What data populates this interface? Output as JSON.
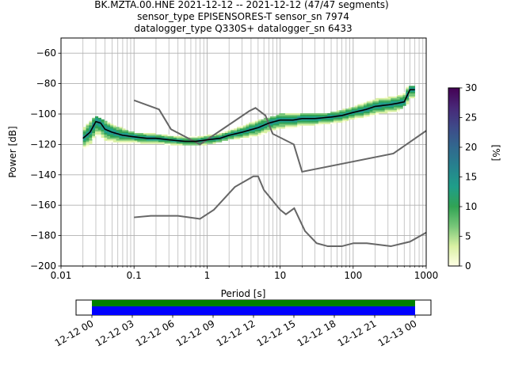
{
  "title_lines": [
    "BK.MZTA.00.HNE   2021-12-12 -- 2021-12-12  (47/47 segments)",
    "sensor_type EPISENSORES-T sensor_sn 7974",
    "datalogger_type Q330S+ datalogger_sn 6433"
  ],
  "chart_data": {
    "type": "heatmap",
    "xlabel": "Period [s]",
    "ylabel": "Power [dB]",
    "xscale": "log",
    "xlim": [
      0.01,
      1000
    ],
    "ylim": [
      -200,
      -50
    ],
    "grid": true,
    "x_ticks": [
      {
        "value": 0.01,
        "label": "0.01"
      },
      {
        "value": 0.1,
        "label": "0.1"
      },
      {
        "value": 1,
        "label": "1"
      },
      {
        "value": 10,
        "label": "10"
      },
      {
        "value": 100,
        "label": "100"
      },
      {
        "value": 1000,
        "label": "1000"
      }
    ],
    "y_ticks": [
      {
        "value": -60,
        "label": "−60"
      },
      {
        "value": -80,
        "label": "−80"
      },
      {
        "value": -100,
        "label": "−100"
      },
      {
        "value": -120,
        "label": "−120"
      },
      {
        "value": -140,
        "label": "−140"
      },
      {
        "value": -160,
        "label": "−160"
      },
      {
        "value": -180,
        "label": "−180"
      },
      {
        "value": -200,
        "label": "−200"
      }
    ],
    "colorbar": {
      "label": "[%]",
      "range": [
        0,
        30
      ],
      "ticks": [
        {
          "value": 0,
          "label": "0"
        },
        {
          "value": 5,
          "label": "5"
        },
        {
          "value": 10,
          "label": "10"
        },
        {
          "value": 15,
          "label": "15"
        },
        {
          "value": 20,
          "label": "20"
        },
        {
          "value": 25,
          "label": "25"
        },
        {
          "value": 30,
          "label": "30"
        }
      ],
      "colors": [
        "#ffffe5",
        "#d9f0a3",
        "#78c679",
        "#31a354",
        "#1f9e89",
        "#26828e",
        "#31688e",
        "#3e4a89",
        "#482878",
        "#440154"
      ]
    },
    "mode_curve": {
      "x": [
        0.02,
        0.025,
        0.03,
        0.035,
        0.04,
        0.05,
        0.07,
        0.1,
        0.15,
        0.2,
        0.3,
        0.5,
        0.7,
        1,
        1.5,
        2,
        3,
        5,
        7,
        10,
        15,
        20,
        30,
        50,
        70,
        100,
        150,
        200,
        300,
        400,
        500,
        600,
        700
      ],
      "y": [
        -116,
        -112,
        -105,
        -106,
        -110,
        -112,
        -114,
        -115,
        -116,
        -116,
        -117,
        -118,
        -118,
        -117,
        -116,
        -114,
        -112,
        -109,
        -106,
        -104,
        -104,
        -103,
        -103,
        -102,
        -101,
        -99,
        -97,
        -95,
        -94,
        -93,
        -92,
        -84,
        -84
      ]
    },
    "density_band": {
      "x": [
        0.02,
        0.03,
        0.05,
        0.1,
        0.2,
        0.5,
        1,
        2,
        5,
        10,
        20,
        50,
        100,
        200,
        400,
        500,
        700
      ],
      "upper": [
        -110,
        -101,
        -107,
        -112,
        -113,
        -114,
        -113,
        -110,
        -104,
        -100,
        -100,
        -99,
        -95,
        -90,
        -88,
        -82,
        -82
      ],
      "lower": [
        -124,
        -120,
        -120,
        -120,
        -120,
        -120,
        -120,
        -117,
        -115,
        -112,
        -109,
        -108,
        -104,
        -101,
        -99,
        -94,
        -94
      ]
    },
    "noise_models": [
      {
        "x": [
          0.1,
          0.22,
          0.32,
          0.8,
          3.8,
          4.6,
          6.3,
          7.9,
          15.4,
          20,
          354.8,
          1000
        ],
        "y": [
          -91,
          -97,
          -110,
          -120,
          -98,
          -96,
          -101,
          -113,
          -120,
          -138,
          -126,
          -111
        ]
      },
      {
        "x": [
          0.1,
          0.17,
          0.4,
          0.8,
          1.24,
          2.4,
          4.3,
          5,
          6,
          10,
          12,
          15.6,
          21.9,
          31.6,
          45,
          70,
          101,
          154,
          328,
          600,
          1000
        ],
        "y": [
          -168,
          -167,
          -167,
          -169,
          -163,
          -148,
          -141,
          -141,
          -150,
          -163,
          -166,
          -162,
          -177,
          -185,
          -187,
          -187,
          -185,
          -185,
          -187,
          -184,
          -178
        ]
      }
    ]
  },
  "timeline": {
    "tick_labels": [
      "12-12 00",
      "12-12 03",
      "12-12 06",
      "12-12 09",
      "12-12 12",
      "12-12 15",
      "12-12 18",
      "12-12 21",
      "12-13 00"
    ],
    "coverage_color": "#0000ff",
    "data_color": "#008000"
  }
}
